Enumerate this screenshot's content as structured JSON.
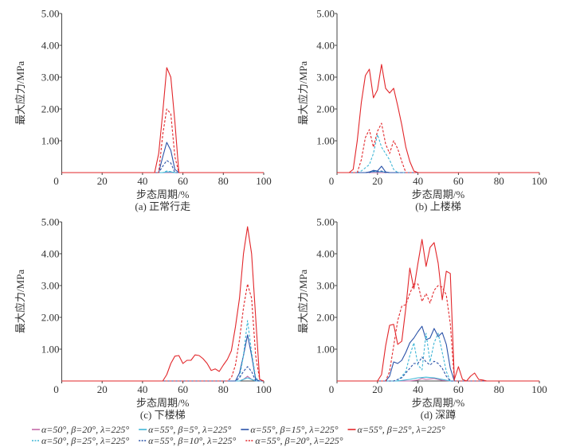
{
  "chart_data": {
    "type": "line",
    "xlabel": "步态周期/%",
    "ylabel": "最大应力/MPa",
    "xlim": [
      0,
      100
    ],
    "ylim": [
      0,
      5
    ],
    "x_ticks": [
      "0",
      "20",
      "40",
      "60",
      "80",
      "100"
    ],
    "y_ticks": [
      "1.00",
      "2.00",
      "3.00",
      "4.00",
      "5.00"
    ],
    "grid": false,
    "legend_position": "bottom",
    "legend": [
      {
        "id": "a50b20",
        "label": "α=50°, β=20°, λ=225°",
        "color": "#c46aa8",
        "dash": false
      },
      {
        "id": "a55b5",
        "label": "α=55°, β=5°, λ=225°",
        "color": "#3fb6d6",
        "dash": false
      },
      {
        "id": "a55b15",
        "label": "α=55°, β=15°, λ=225°",
        "color": "#2a52a8",
        "dash": false
      },
      {
        "id": "a55b25",
        "label": "α=55°, β=25°, λ=225°",
        "color": "#e2262a",
        "dash": false
      },
      {
        "id": "a50b25",
        "label": "α=50°, β=25°, λ=225°",
        "color": "#3fb6d6",
        "dash": true
      },
      {
        "id": "a55b10",
        "label": "α=55°, β=10°, λ=225°",
        "color": "#2a52a8",
        "dash": true
      },
      {
        "id": "a55b20",
        "label": "α=55°, β=20°, λ=225°",
        "color": "#e2262a",
        "dash": true
      }
    ],
    "panels": [
      {
        "caption": "(a) 正常行走",
        "series": {
          "a50b20": [],
          "a55b5": [
            [
              50,
              0
            ],
            [
              52,
              0.02
            ],
            [
              54,
              0.02
            ],
            [
              56,
              0
            ]
          ],
          "a55b15": [
            [
              48,
              0
            ],
            [
              50,
              0.5
            ],
            [
              52,
              0.95
            ],
            [
              54,
              0.7
            ],
            [
              56,
              0.1
            ],
            [
              58,
              0
            ]
          ],
          "a50b25": [
            [
              50,
              0
            ],
            [
              52,
              0.05
            ],
            [
              54,
              0.03
            ],
            [
              56,
              0
            ]
          ],
          "a55b10": [
            [
              48,
              0
            ],
            [
              50,
              0.2
            ],
            [
              52,
              0.38
            ],
            [
              54,
              0.3
            ],
            [
              56,
              0
            ]
          ],
          "a55b20": [
            [
              48,
              0
            ],
            [
              50,
              1.2
            ],
            [
              52,
              2.0
            ],
            [
              54,
              1.85
            ],
            [
              56,
              0.5
            ],
            [
              58,
              0
            ]
          ],
          "a55b25": [
            [
              46,
              0
            ],
            [
              48,
              0.6
            ],
            [
              50,
              1.9
            ],
            [
              52,
              3.3
            ],
            [
              54,
              3.0
            ],
            [
              56,
              1.6
            ],
            [
              58,
              0
            ]
          ]
        }
      },
      {
        "caption": "(b) 上楼梯",
        "series": {
          "a50b20": [],
          "a55b5": [
            [
              14,
              0
            ],
            [
              18,
              0.03
            ],
            [
              22,
              0.03
            ],
            [
              26,
              0
            ]
          ],
          "a55b15": [
            [
              14,
              0
            ],
            [
              16,
              0.02
            ],
            [
              18,
              0.07
            ],
            [
              20,
              0.05
            ],
            [
              22,
              0.2
            ],
            [
              24,
              0.02
            ],
            [
              26,
              0
            ]
          ],
          "a50b25": [
            [
              10,
              0
            ],
            [
              12,
              0.05
            ],
            [
              14,
              0.15
            ],
            [
              16,
              0.25
            ],
            [
              18,
              0.6
            ],
            [
              20,
              1.2
            ],
            [
              22,
              0.8
            ],
            [
              24,
              0.6
            ],
            [
              26,
              0.4
            ],
            [
              28,
              0.1
            ],
            [
              30,
              0
            ]
          ],
          "a55b10": [
            [
              16,
              0
            ],
            [
              18,
              0.05
            ],
            [
              20,
              0.03
            ],
            [
              22,
              0.05
            ],
            [
              24,
              0
            ]
          ],
          "a55b20": [
            [
              10,
              0
            ],
            [
              12,
              0.4
            ],
            [
              14,
              1.1
            ],
            [
              16,
              1.35
            ],
            [
              18,
              0.8
            ],
            [
              20,
              1.3
            ],
            [
              22,
              1.55
            ],
            [
              24,
              0.9
            ],
            [
              26,
              0.6
            ],
            [
              28,
              1.0
            ],
            [
              30,
              0.75
            ],
            [
              32,
              0.35
            ],
            [
              34,
              0
            ]
          ],
          "a55b25": [
            [
              6,
              0
            ],
            [
              8,
              0.1
            ],
            [
              10,
              1.0
            ],
            [
              12,
              2.2
            ],
            [
              14,
              3.05
            ],
            [
              16,
              3.25
            ],
            [
              18,
              2.35
            ],
            [
              20,
              2.6
            ],
            [
              22,
              3.4
            ],
            [
              24,
              2.65
            ],
            [
              26,
              2.5
            ],
            [
              28,
              2.65
            ],
            [
              30,
              2.1
            ],
            [
              32,
              1.5
            ],
            [
              34,
              0.8
            ],
            [
              36,
              0.35
            ],
            [
              38,
              0.05
            ],
            [
              40,
              0
            ]
          ]
        }
      },
      {
        "caption": "(c) 下楼梯",
        "series": {
          "a50b20": [
            [
              88,
              0
            ],
            [
              90,
              0.05
            ],
            [
              92,
              0.15
            ],
            [
              94,
              0.05
            ],
            [
              96,
              0
            ]
          ],
          "a55b5": [
            [
              88,
              0
            ],
            [
              90,
              0.05
            ],
            [
              92,
              0.1
            ],
            [
              94,
              0.05
            ],
            [
              96,
              0
            ]
          ],
          "a55b15": [
            [
              86,
              0
            ],
            [
              88,
              0.25
            ],
            [
              90,
              0.8
            ],
            [
              92,
              1.45
            ],
            [
              94,
              0.8
            ],
            [
              96,
              0.05
            ],
            [
              98,
              0
            ]
          ],
          "a50b25": [
            [
              86,
              0
            ],
            [
              88,
              0.1
            ],
            [
              90,
              0.8
            ],
            [
              92,
              1.9
            ],
            [
              94,
              0.9
            ],
            [
              96,
              0.1
            ],
            [
              98,
              0
            ]
          ],
          "a55b10": [
            [
              86,
              0
            ],
            [
              88,
              0.1
            ],
            [
              90,
              0.3
            ],
            [
              92,
              0.45
            ],
            [
              94,
              0.3
            ],
            [
              96,
              0
            ]
          ],
          "a55b20": [
            [
              82,
              0
            ],
            [
              84,
              0.1
            ],
            [
              86,
              0.5
            ],
            [
              88,
              1.3
            ],
            [
              90,
              2.3
            ],
            [
              92,
              3.05
            ],
            [
              94,
              2.6
            ],
            [
              96,
              0.8
            ],
            [
              98,
              0.05
            ],
            [
              100,
              0
            ]
          ],
          "a55b25": [
            [
              50,
              0
            ],
            [
              52,
              0.2
            ],
            [
              54,
              0.55
            ],
            [
              56,
              0.78
            ],
            [
              58,
              0.8
            ],
            [
              60,
              0.55
            ],
            [
              62,
              0.65
            ],
            [
              64,
              0.65
            ],
            [
              66,
              0.82
            ],
            [
              68,
              0.8
            ],
            [
              70,
              0.7
            ],
            [
              72,
              0.55
            ],
            [
              74,
              0.33
            ],
            [
              76,
              0.38
            ],
            [
              78,
              0.3
            ],
            [
              80,
              0.5
            ],
            [
              82,
              0.68
            ],
            [
              84,
              0.95
            ],
            [
              86,
              1.7
            ],
            [
              88,
              2.6
            ],
            [
              90,
              4.0
            ],
            [
              92,
              4.85
            ],
            [
              94,
              4.0
            ],
            [
              96,
              2.0
            ],
            [
              98,
              0.05
            ],
            [
              100,
              0
            ]
          ]
        }
      },
      {
        "caption": "(d) 深蹲",
        "series": {
          "a50b20": [
            [
              36,
              0
            ],
            [
              40,
              0.03
            ],
            [
              42,
              0.08
            ],
            [
              44,
              0.05
            ],
            [
              48,
              0.08
            ],
            [
              52,
              0.02
            ],
            [
              56,
              0
            ]
          ],
          "a55b5": [
            [
              30,
              0
            ],
            [
              36,
              0.05
            ],
            [
              40,
              0.1
            ],
            [
              44,
              0.12
            ],
            [
              48,
              0.1
            ],
            [
              52,
              0.05
            ],
            [
              56,
              0
            ]
          ],
          "a55b15": [
            [
              24,
              0
            ],
            [
              26,
              0.15
            ],
            [
              28,
              0.6
            ],
            [
              30,
              0.55
            ],
            [
              32,
              0.65
            ],
            [
              34,
              0.9
            ],
            [
              36,
              1.2
            ],
            [
              38,
              1.35
            ],
            [
              40,
              1.55
            ],
            [
              42,
              1.72
            ],
            [
              44,
              1.3
            ],
            [
              46,
              1.35
            ],
            [
              48,
              1.65
            ],
            [
              50,
              1.4
            ],
            [
              52,
              1.52
            ],
            [
              54,
              1.15
            ],
            [
              56,
              0.4
            ],
            [
              58,
              0
            ]
          ],
          "a50b25": [
            [
              30,
              0
            ],
            [
              34,
              0.3
            ],
            [
              36,
              0.8
            ],
            [
              38,
              1.2
            ],
            [
              40,
              0.5
            ],
            [
              42,
              0.35
            ],
            [
              44,
              1.5
            ],
            [
              46,
              0.6
            ],
            [
              48,
              1.2
            ],
            [
              50,
              1.5
            ],
            [
              52,
              0.9
            ],
            [
              54,
              0.3
            ],
            [
              56,
              0
            ]
          ],
          "a55b10": [
            [
              28,
              0
            ],
            [
              32,
              0.1
            ],
            [
              34,
              0.25
            ],
            [
              36,
              0.4
            ],
            [
              38,
              0.55
            ],
            [
              40,
              0.55
            ],
            [
              42,
              0.75
            ],
            [
              44,
              0.6
            ],
            [
              46,
              0.5
            ],
            [
              48,
              0.62
            ],
            [
              50,
              0.55
            ],
            [
              52,
              0.4
            ],
            [
              54,
              0.15
            ],
            [
              56,
              0
            ]
          ],
          "a55b20": [
            [
              24,
              0
            ],
            [
              26,
              0.3
            ],
            [
              28,
              1.1
            ],
            [
              30,
              1.9
            ],
            [
              32,
              2.35
            ],
            [
              34,
              2.4
            ],
            [
              36,
              2.75
            ],
            [
              38,
              3.05
            ],
            [
              40,
              3.05
            ],
            [
              42,
              2.5
            ],
            [
              44,
              2.75
            ],
            [
              46,
              2.45
            ],
            [
              48,
              2.85
            ],
            [
              50,
              3.0
            ],
            [
              52,
              2.95
            ],
            [
              54,
              2.7
            ],
            [
              56,
              1.8
            ],
            [
              58,
              0
            ]
          ],
          "a55b25": [
            [
              20,
              0
            ],
            [
              22,
              0.2
            ],
            [
              24,
              1.1
            ],
            [
              26,
              1.75
            ],
            [
              28,
              1.78
            ],
            [
              30,
              1.15
            ],
            [
              32,
              1.25
            ],
            [
              34,
              2.3
            ],
            [
              36,
              3.55
            ],
            [
              38,
              2.9
            ],
            [
              40,
              3.7
            ],
            [
              42,
              4.45
            ],
            [
              44,
              3.6
            ],
            [
              46,
              4.2
            ],
            [
              48,
              4.35
            ],
            [
              50,
              3.7
            ],
            [
              52,
              2.55
            ],
            [
              54,
              3.45
            ],
            [
              56,
              3.38
            ],
            [
              58,
              0.05
            ],
            [
              60,
              0.45
            ],
            [
              62,
              0.05
            ],
            [
              64,
              0
            ],
            [
              66,
              0.15
            ],
            [
              68,
              0.25
            ],
            [
              70,
              0.05
            ],
            [
              72,
              0.03
            ],
            [
              74,
              0
            ]
          ]
        }
      }
    ]
  }
}
